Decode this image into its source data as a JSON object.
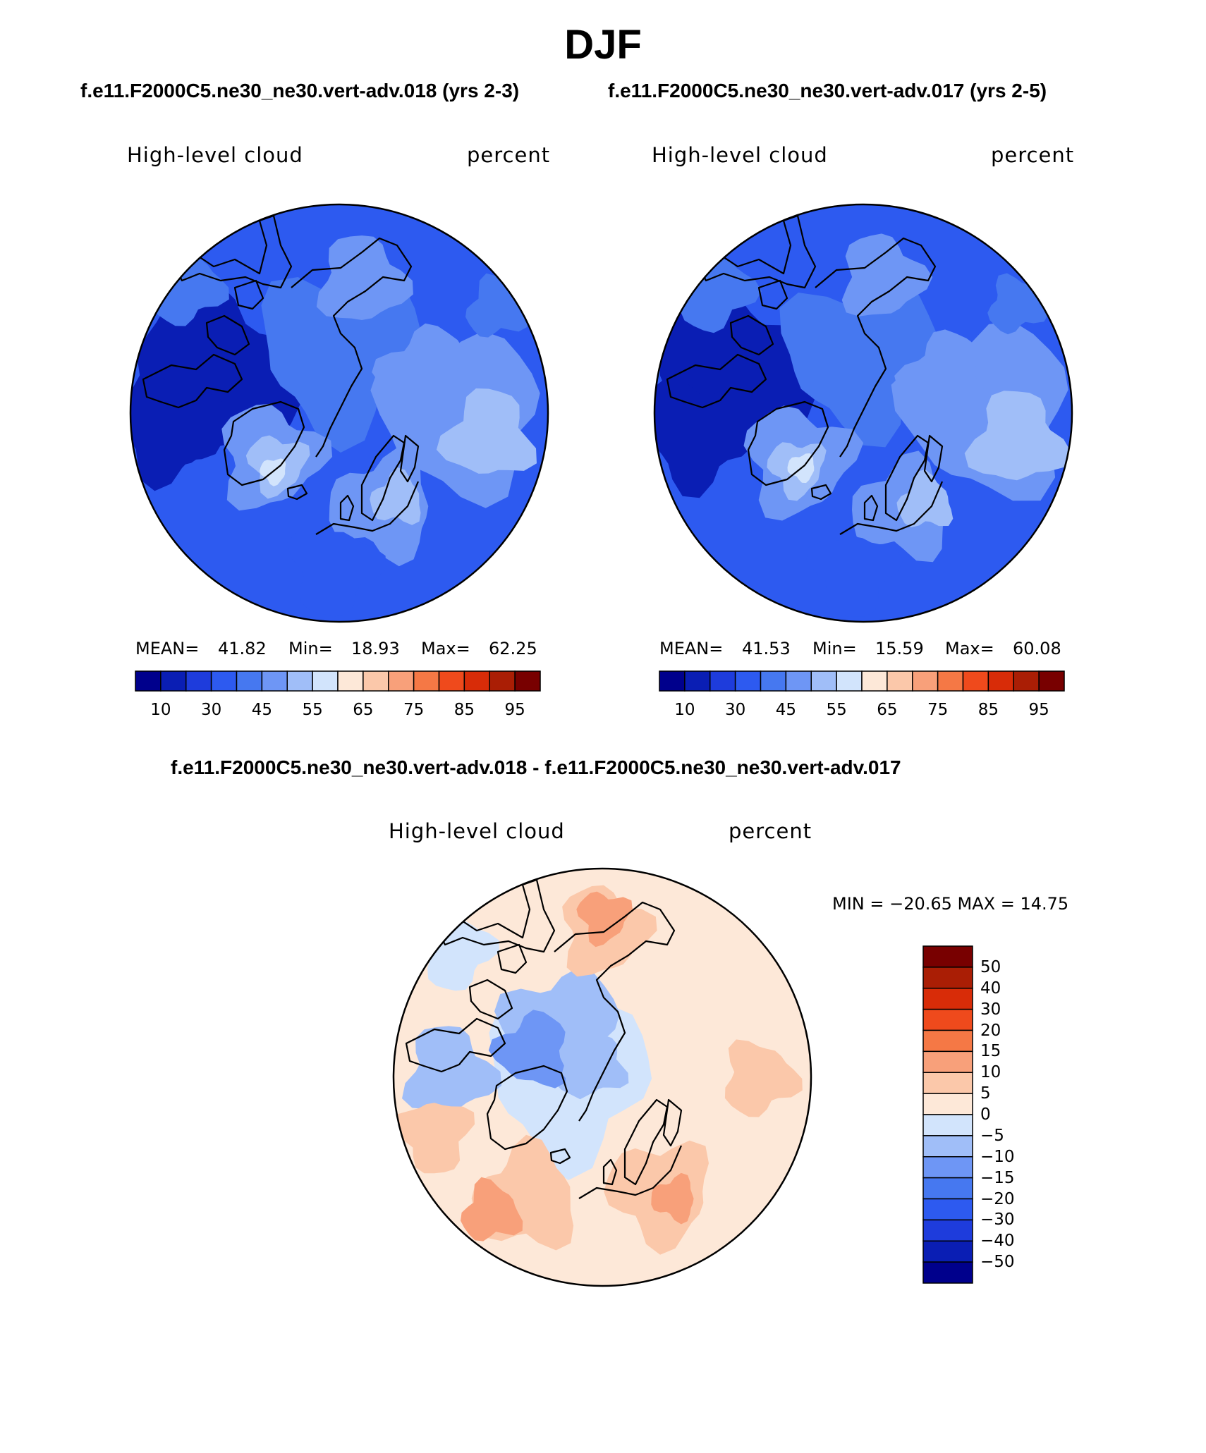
{
  "page": {
    "title": "DJF",
    "subtitle_left": "f.e11.F2000C5.ne30_ne30.vert-adv.018 (yrs 2-3)",
    "subtitle_right": "f.e11.F2000C5.ne30_ne30.vert-adv.017 (yrs 2-5)",
    "diff_title": "f.e11.F2000C5.ne30_ne30.vert-adv.018 - f.e11.F2000C5.ne30_ne30.vert-adv.017"
  },
  "colors": {
    "abs_scale": [
      "#00008c",
      "#0a1eb4",
      "#1e3cdc",
      "#2d5af0",
      "#4678f0",
      "#6e96f5",
      "#a0bef8",
      "#d2e4fc",
      "#fde8d8",
      "#fbc8aa",
      "#f8a07a",
      "#f57845",
      "#ef4a1c",
      "#d82c08",
      "#aa1e05",
      "#780000"
    ],
    "diff_scale": [
      "#780000",
      "#aa1e05",
      "#d82c08",
      "#ef4a1c",
      "#f57845",
      "#f8a07a",
      "#fbc8aa",
      "#fde8d8",
      "#d2e4fc",
      "#a0bef8",
      "#6e96f5",
      "#4678f0",
      "#2d5af0",
      "#1e3cdc",
      "#0a1eb4",
      "#00008c"
    ]
  },
  "chart_data": [
    {
      "type": "polar-contour-map",
      "region": "Northern Hemisphere polar",
      "variable": "High-level cloud",
      "units": "percent",
      "case": "f.e11.F2000C5.ne30_ne30.vert-adv.018 (yrs 2-3)",
      "stats": {
        "mean_label": "MEAN=",
        "mean": "41.82",
        "min_label": "Min=",
        "min": "18.93",
        "max_label": "Max=",
        "max": "62.25"
      },
      "colorbar_ticks": [
        "10",
        "30",
        "45",
        "55",
        "65",
        "75",
        "85",
        "95"
      ]
    },
    {
      "type": "polar-contour-map",
      "region": "Northern Hemisphere polar",
      "variable": "High-level cloud",
      "units": "percent",
      "case": "f.e11.F2000C5.ne30_ne30.vert-adv.017 (yrs 2-5)",
      "stats": {
        "mean_label": "MEAN=",
        "mean": "41.53",
        "min_label": "Min=",
        "min": "15.59",
        "max_label": "Max=",
        "max": "60.08"
      },
      "colorbar_ticks": [
        "10",
        "30",
        "45",
        "55",
        "65",
        "75",
        "85",
        "95"
      ]
    },
    {
      "type": "polar-contour-map-difference",
      "region": "Northern Hemisphere polar",
      "variable": "High-level cloud",
      "units": "percent",
      "stats_text": "MIN = −20.65 MAX =   14.75",
      "min": -20.65,
      "max": 14.75,
      "colorbar_ticks": [
        "50",
        "40",
        "30",
        "20",
        "15",
        "10",
        "5",
        "0",
        "−5",
        "−10",
        "−15",
        "−20",
        "−30",
        "−40",
        "−50"
      ]
    }
  ]
}
